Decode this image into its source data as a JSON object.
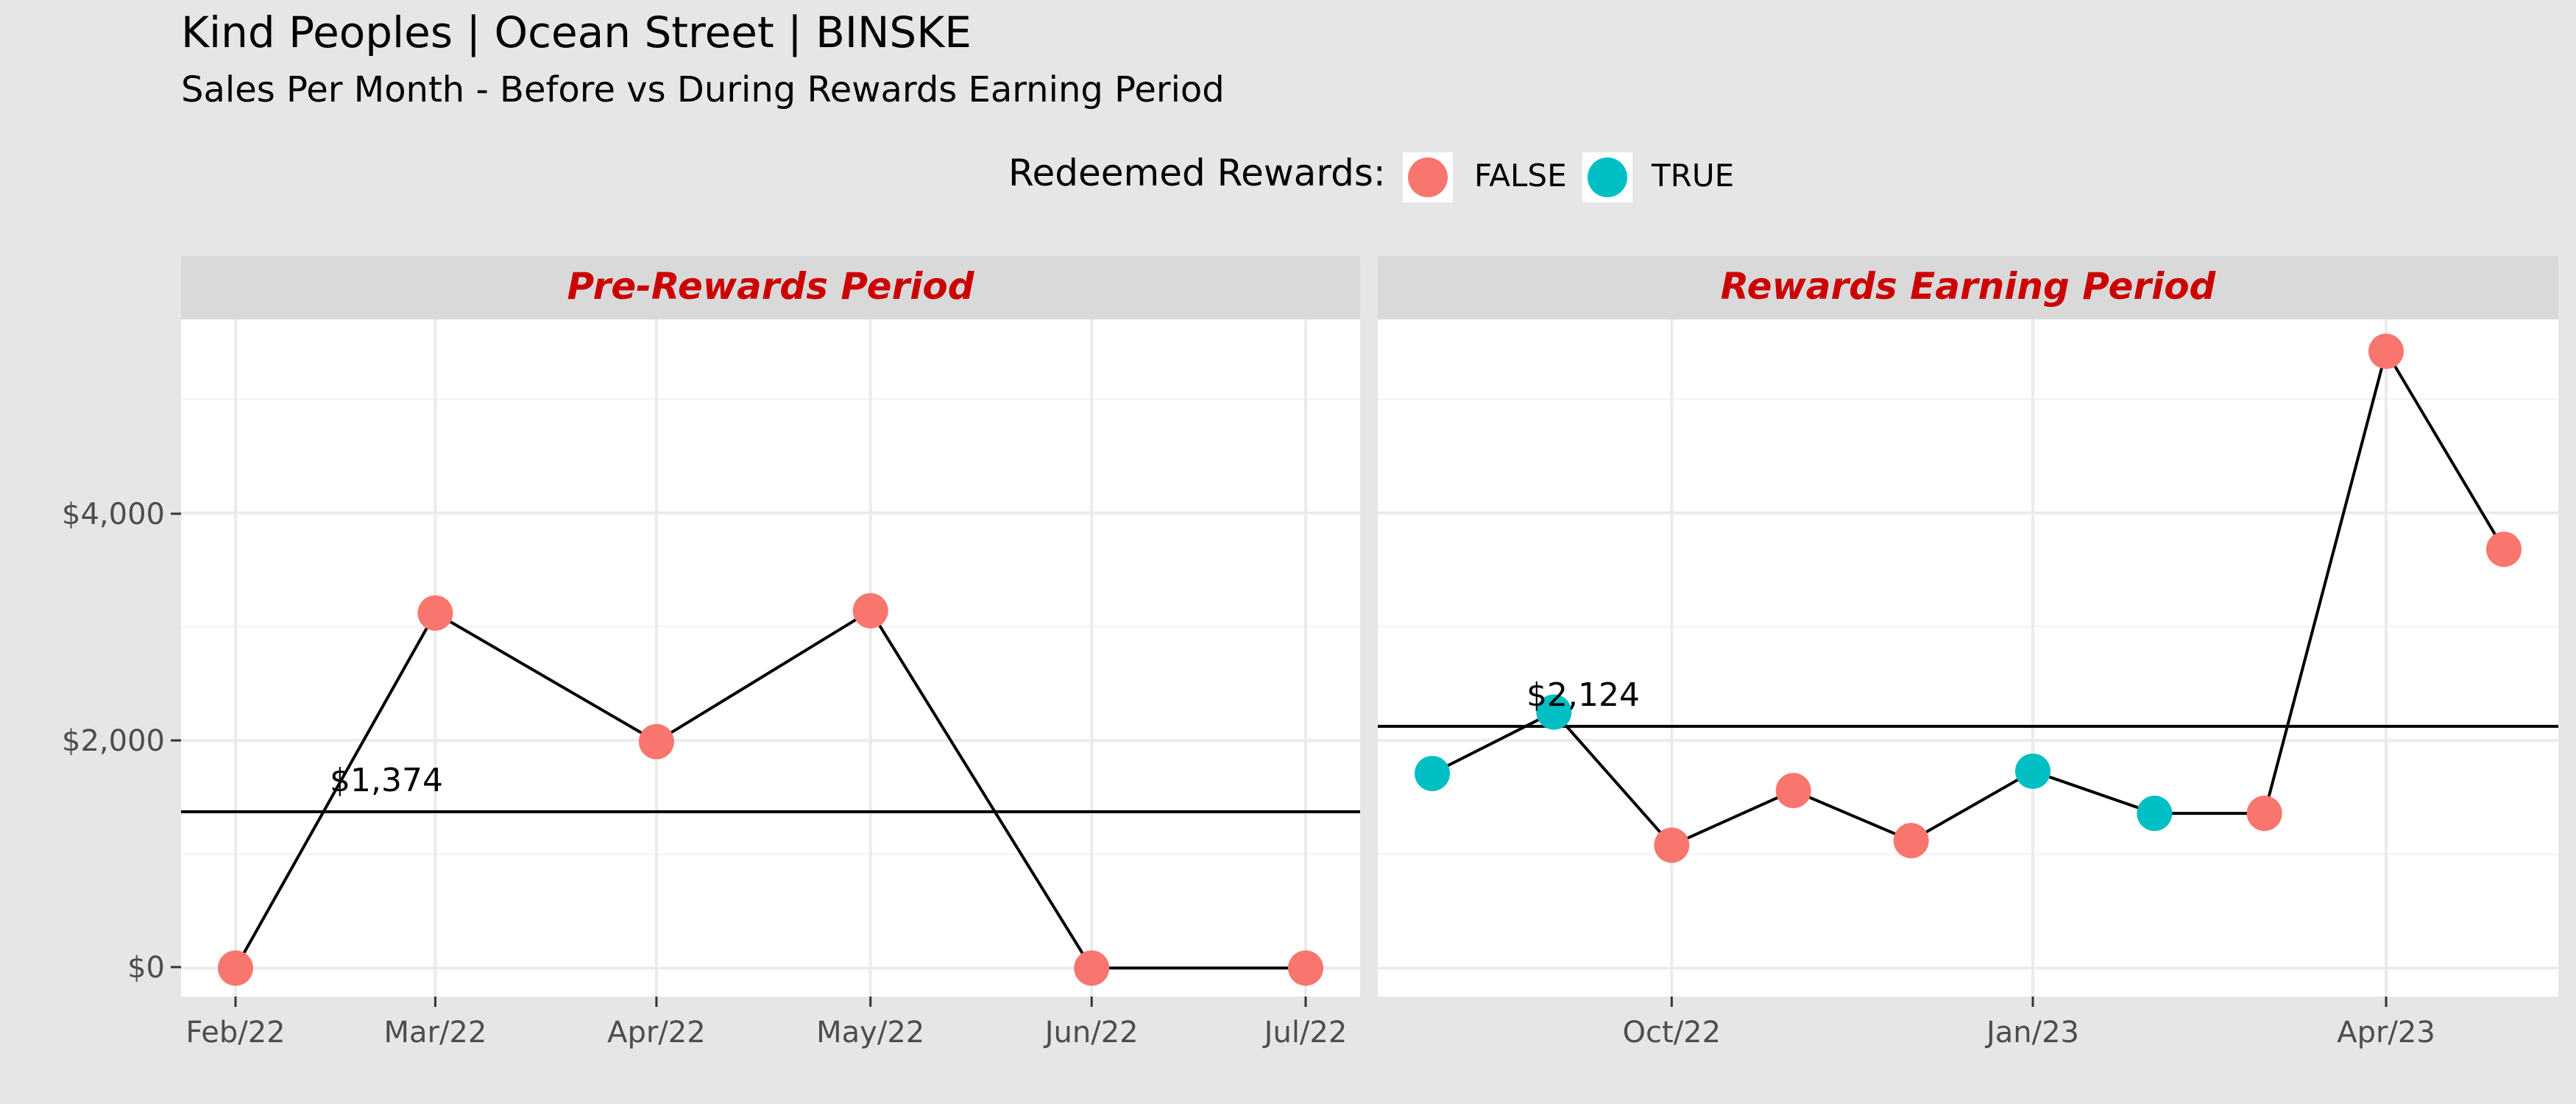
{
  "title": "Kind Peoples | Ocean Street | BINSKE",
  "subtitle": "Sales Per Month - Before vs During Rewards Earning Period",
  "legend": {
    "title": "Redeemed Rewards:",
    "items": [
      {
        "label": "FALSE",
        "color": "#F8766D"
      },
      {
        "label": "TRUE",
        "color": "#00BFC4"
      }
    ]
  },
  "y_axis": {
    "ticks": [
      0,
      2000,
      4000
    ],
    "tick_labels": [
      "$0",
      "$2,000",
      "$4,000"
    ]
  },
  "chart_data": [
    {
      "type": "line",
      "panel_title": "Pre-Rewards Period",
      "title_color": "#CC0000",
      "ylim": [
        -250,
        5700
      ],
      "grid": true,
      "x": [
        "2022-02-01",
        "2022-03-01",
        "2022-04-01",
        "2022-05-01",
        "2022-06-01",
        "2022-07-01"
      ],
      "x_tick_labels": [
        "Feb/22",
        "Mar/22",
        "Apr/22",
        "May/22",
        "Jun/22",
        "Jul/22"
      ],
      "values": [
        0,
        3120,
        1990,
        3140,
        0,
        0
      ],
      "redeemed": [
        false,
        false,
        false,
        false,
        false,
        false
      ],
      "mean": 1374,
      "mean_label": "$1,374"
    },
    {
      "type": "line",
      "panel_title": "Rewards Earning Period",
      "title_color": "#CC0000",
      "ylim": [
        -250,
        5700
      ],
      "grid": true,
      "x": [
        "2022-08-01",
        "2022-09-01",
        "2022-10-01",
        "2022-11-01",
        "2022-12-01",
        "2023-01-01",
        "2023-02-01",
        "2023-03-01",
        "2023-04-01",
        "2023-05-01"
      ],
      "x_tick_labels": [
        "Oct/22",
        "Jan/23",
        "Apr/23"
      ],
      "x_tick_values": [
        "2022-10-01",
        "2023-01-01",
        "2023-04-01"
      ],
      "values": [
        1710,
        2250,
        1080,
        1560,
        1120,
        1730,
        1360,
        1360,
        5420,
        3680
      ],
      "redeemed": [
        true,
        true,
        false,
        false,
        false,
        true,
        true,
        false,
        false,
        false
      ],
      "mean": 2124,
      "mean_label": "$2,124"
    }
  ]
}
